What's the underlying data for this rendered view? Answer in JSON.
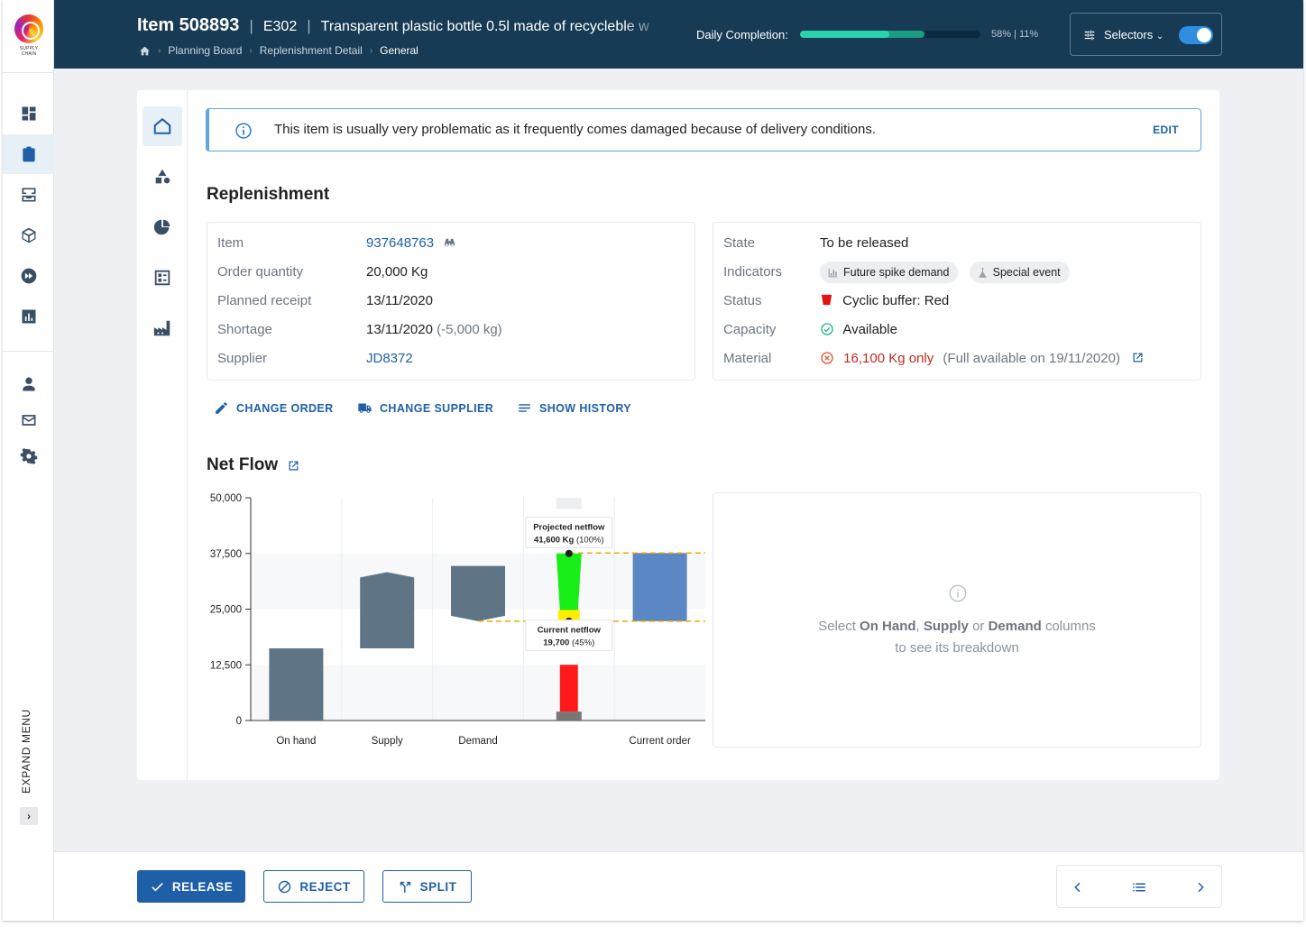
{
  "app": {
    "logo_text": "SUPPLY CHAIN"
  },
  "header": {
    "item_title": "Item 508893",
    "code": "E302",
    "description": "Transparent plastic bottle 0.5l made of recycleble w",
    "breadcrumbs": [
      "Planning Board",
      "Replenishment Detail",
      "General"
    ],
    "daily_completion_label": "Daily Completion:",
    "daily_completion_pct": 58,
    "secondary_pct": 11,
    "daily_completion_text": "58% | 11%",
    "selectors_label": "Selectors",
    "selectors_toggle_on": true
  },
  "sidebar": {
    "icons": [
      "dashboard-icon",
      "clipboard-icon",
      "inbox-icon",
      "cube-icon",
      "fast-forward-icon",
      "bar-chart-icon",
      "person-icon",
      "mail-icon",
      "gear-icon"
    ],
    "expand_label": "EXPAND MENU"
  },
  "alert": {
    "text": "This item is usually very problematic as it frequently comes damaged because of delivery conditions.",
    "edit_label": "EDIT"
  },
  "replenishment": {
    "title": "Replenishment",
    "item_label": "Item",
    "item_value": "937648763",
    "order_qty_label": "Order quantity",
    "order_qty_value": "20,000 Kg",
    "planned_receipt_label": "Planned receipt",
    "planned_receipt_value": "13/11/2020",
    "shortage_label": "Shortage",
    "shortage_value": "13/11/2020",
    "shortage_note": "(-5,000 kg)",
    "supplier_label": "Supplier",
    "supplier_value": "JD8372",
    "state_label": "State",
    "state_value": "To be released",
    "indicators_label": "Indicators",
    "indicators": [
      "Future spike demand",
      "Special event"
    ],
    "status_label": "Status",
    "status_value": "Cyclic buffer: Red",
    "capacity_label": "Capacity",
    "capacity_value": "Available",
    "material_label": "Material",
    "material_value": "16,100 Kg only",
    "material_note": "(Full available on 19/11/2020)"
  },
  "actions": {
    "change_order": "CHANGE ORDER",
    "change_supplier": "CHANGE SUPPLIER",
    "show_history": "SHOW HISTORY"
  },
  "netflow": {
    "title": "Net Flow"
  },
  "chart_data": {
    "type": "bar",
    "subtype": "waterfall",
    "categories": [
      "On hand",
      "Supply",
      "Demand",
      "",
      "Current order"
    ],
    "yticks": [
      "0",
      "12,500",
      "25,000",
      "37,500",
      "50,000"
    ],
    "ylim": [
      0,
      50000
    ],
    "bars": [
      {
        "category": "On hand",
        "start": 0,
        "end": 16200,
        "color": "#5f7585"
      },
      {
        "category": "Supply",
        "start": 16200,
        "end": 33300,
        "color": "#5f7585"
      },
      {
        "category": "Demand",
        "start": 34700,
        "end": 22300,
        "color": "#5f7585"
      },
      {
        "category": "Current order",
        "start": 22300,
        "end": 37600,
        "color": "#5b87c5"
      }
    ],
    "buffer_zones": [
      {
        "name": "red",
        "from": 0,
        "to": 12500,
        "color": "#ff1a1a"
      },
      {
        "name": "yellow",
        "from": 12500,
        "to": 25000,
        "color": "#ffee00"
      },
      {
        "name": "green",
        "from": 25000,
        "to": 37500,
        "color": "#18ee18"
      }
    ],
    "buffer_zone_values": [
      500,
      21300,
      37500
    ],
    "gray_base": 2000,
    "reference_lines": [
      37600,
      22300
    ],
    "annotations": [
      {
        "title": "Projected netflow",
        "value": 41600,
        "text": "41,600 Kg",
        "pct": "(100%)"
      },
      {
        "title": "Current netflow",
        "value": 19700,
        "text": "19,700",
        "pct": "(45%)"
      }
    ]
  },
  "hint": {
    "prefix": "Select ",
    "on_hand": "On Hand",
    "comma": ", ",
    "supply": "Supply",
    "or": " or ",
    "demand": "Demand",
    "suffix": " columns",
    "line2": "to see its breakdown"
  },
  "footer": {
    "release": "RELEASE",
    "reject": "REJECT",
    "split": "SPLIT"
  },
  "colors": {
    "brand": "#173b55",
    "accent": "#1e5fa8",
    "success": "#2bd4a8",
    "danger": "#c0281d"
  }
}
